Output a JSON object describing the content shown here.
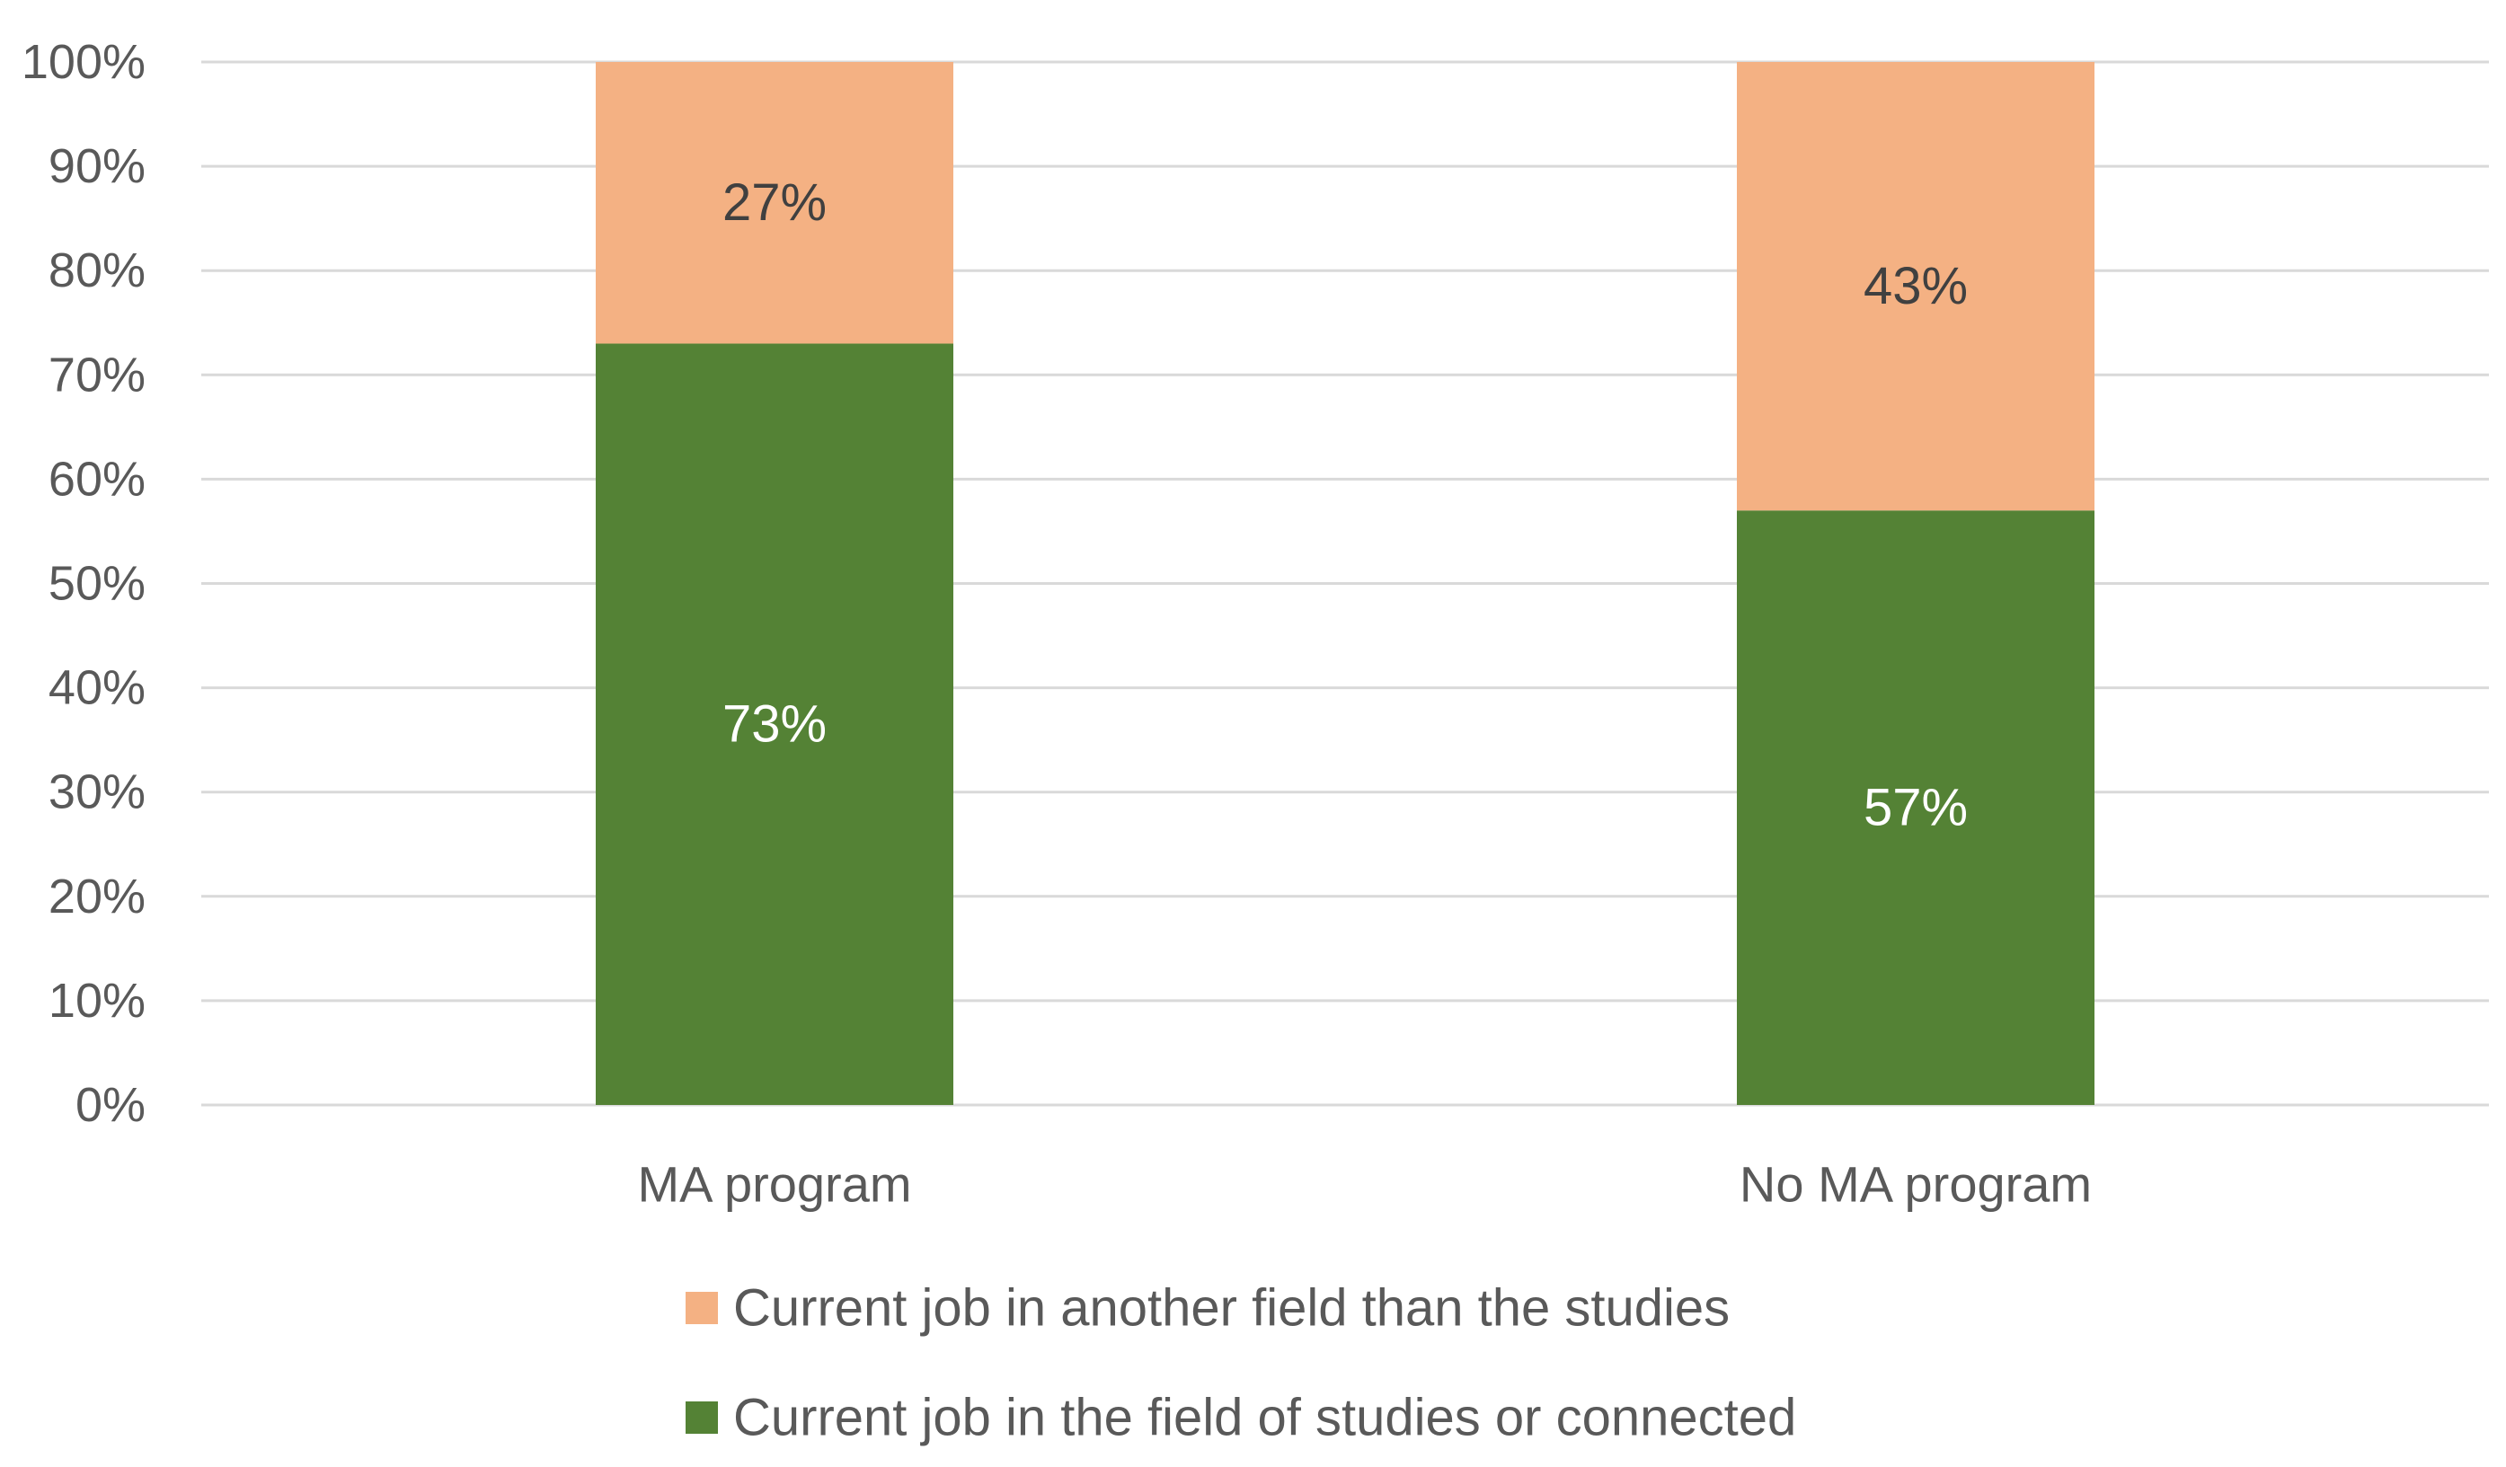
{
  "chart_data": {
    "type": "bar",
    "stacked": true,
    "title": "",
    "xlabel": "",
    "ylabel": "",
    "ylim": [
      0,
      100
    ],
    "y_ticks": [
      "0%",
      "10%",
      "20%",
      "30%",
      "40%",
      "50%",
      "60%",
      "70%",
      "80%",
      "90%",
      "100%"
    ],
    "y_tick_values": [
      0,
      10,
      20,
      30,
      40,
      50,
      60,
      70,
      80,
      90,
      100
    ],
    "categories": [
      "MA program",
      "No MA program"
    ],
    "series": [
      {
        "name": "Current job in the field of studies or connected",
        "values": [
          73,
          57
        ],
        "labels": [
          "73%",
          "57%"
        ],
        "color": "#548235",
        "label_color": "#ffffff"
      },
      {
        "name": "Current job in another field than the studies",
        "values": [
          27,
          43
        ],
        "labels": [
          "27%",
          "43%"
        ],
        "color": "#f4b183",
        "label_color": "#404040"
      }
    ],
    "legend": {
      "position": "bottom",
      "order": [
        "Current job in another field than the studies",
        "Current job in the field of studies or connected"
      ]
    },
    "grid": true,
    "colors": {
      "grid": "#d9d9d9",
      "axis_text": "#595959"
    }
  }
}
